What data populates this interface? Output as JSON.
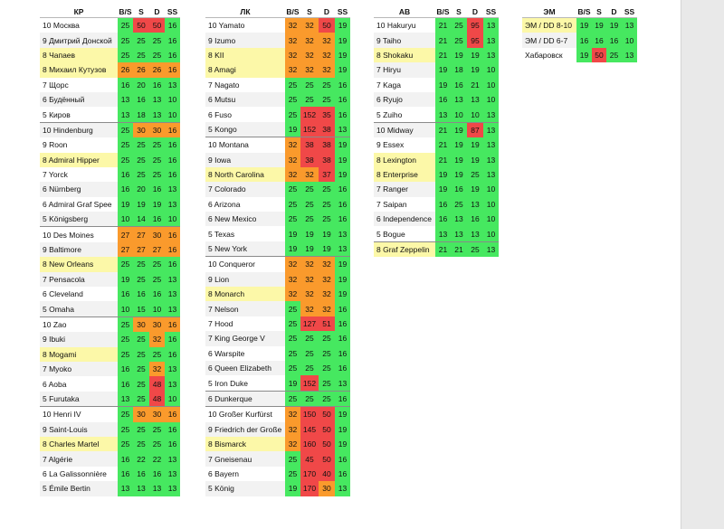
{
  "colors": {
    "green": "#46e860",
    "orange": "#fa9a2c",
    "red": "#f04848",
    "highlight": "#fcf8a8"
  },
  "tables": [
    {
      "id": "kr",
      "columns": [
        "КР",
        "B/S",
        "S",
        "D",
        "SS"
      ],
      "rows": [
        {
          "name": "10 Москва",
          "vals": [
            "25",
            "50",
            "50",
            "16"
          ],
          "c": "grrg",
          "hl": false
        },
        {
          "name": "9 Дмитрий Донской",
          "vals": [
            "25",
            "25",
            "25",
            "16"
          ],
          "c": "gggg",
          "hl": false
        },
        {
          "name": "8 Чапаев",
          "vals": [
            "25",
            "25",
            "25",
            "16"
          ],
          "c": "gggg",
          "hl": true
        },
        {
          "name": "8 Михаил Кутузов",
          "vals": [
            "26",
            "26",
            "26",
            "16"
          ],
          "c": "oooo",
          "hl": true
        },
        {
          "name": "7 Щорс",
          "vals": [
            "16",
            "20",
            "16",
            "13"
          ],
          "c": "gggg",
          "hl": false
        },
        {
          "name": "6 Будённый",
          "vals": [
            "13",
            "16",
            "13",
            "10"
          ],
          "c": "gggg",
          "hl": false
        },
        {
          "name": "5 Киров",
          "vals": [
            "13",
            "18",
            "13",
            "10"
          ],
          "c": "gggg",
          "hl": false
        },
        {
          "name": "10 Hindenburg",
          "vals": [
            "25",
            "30",
            "30",
            "16"
          ],
          "c": "gooo",
          "hl": false,
          "sep": true
        },
        {
          "name": "9 Roon",
          "vals": [
            "25",
            "25",
            "25",
            "16"
          ],
          "c": "gggg",
          "hl": false
        },
        {
          "name": "8 Admiral Hipper",
          "vals": [
            "25",
            "25",
            "25",
            "16"
          ],
          "c": "gggg",
          "hl": true
        },
        {
          "name": "7 Yorck",
          "vals": [
            "16",
            "25",
            "25",
            "16"
          ],
          "c": "gggg",
          "hl": false
        },
        {
          "name": "6 Nürnberg",
          "vals": [
            "16",
            "20",
            "16",
            "13"
          ],
          "c": "gggg",
          "hl": false
        },
        {
          "name": "6 Admiral Graf Spee",
          "vals": [
            "19",
            "19",
            "19",
            "13"
          ],
          "c": "gggg",
          "hl": false
        },
        {
          "name": "5 Königsberg",
          "vals": [
            "10",
            "14",
            "16",
            "10"
          ],
          "c": "gggg",
          "hl": false
        },
        {
          "name": "10 Des Moines",
          "vals": [
            "27",
            "27",
            "30",
            "16"
          ],
          "c": "oooo",
          "hl": false,
          "sep": true
        },
        {
          "name": "9 Baltimore",
          "vals": [
            "27",
            "27",
            "27",
            "16"
          ],
          "c": "oooo",
          "hl": false
        },
        {
          "name": "8 New Orleans",
          "vals": [
            "25",
            "25",
            "25",
            "16"
          ],
          "c": "gggg",
          "hl": true
        },
        {
          "name": "7 Pensacola",
          "vals": [
            "19",
            "25",
            "25",
            "13"
          ],
          "c": "gggg",
          "hl": false
        },
        {
          "name": "6 Cleveland",
          "vals": [
            "16",
            "16",
            "16",
            "13"
          ],
          "c": "gggg",
          "hl": false
        },
        {
          "name": "5 Omaha",
          "vals": [
            "10",
            "15",
            "10",
            "13"
          ],
          "c": "gggg",
          "hl": false
        },
        {
          "name": "10 Zao",
          "vals": [
            "25",
            "30",
            "30",
            "16"
          ],
          "c": "gooo",
          "hl": false,
          "sep": true
        },
        {
          "name": "9 Ibuki",
          "vals": [
            "25",
            "25",
            "32",
            "16"
          ],
          "c": "ggog",
          "hl": false
        },
        {
          "name": "8 Mogami",
          "vals": [
            "25",
            "25",
            "25",
            "16"
          ],
          "c": "gggg",
          "hl": true
        },
        {
          "name": "7 Myoko",
          "vals": [
            "16",
            "25",
            "32",
            "13"
          ],
          "c": "ggog",
          "hl": false
        },
        {
          "name": "6 Aoba",
          "vals": [
            "16",
            "25",
            "48",
            "13"
          ],
          "c": "ggrg",
          "hl": false
        },
        {
          "name": "5 Furutaka",
          "vals": [
            "13",
            "25",
            "48",
            "10"
          ],
          "c": "ggrg",
          "hl": false
        },
        {
          "name": "10 Henri IV",
          "vals": [
            "25",
            "30",
            "30",
            "16"
          ],
          "c": "gooo",
          "hl": false,
          "sep": true
        },
        {
          "name": "9 Saint-Louis",
          "vals": [
            "25",
            "25",
            "25",
            "16"
          ],
          "c": "gggg",
          "hl": false
        },
        {
          "name": "8 Charles Martel",
          "vals": [
            "25",
            "25",
            "25",
            "16"
          ],
          "c": "gggg",
          "hl": true
        },
        {
          "name": "7 Algérie",
          "vals": [
            "16",
            "22",
            "22",
            "13"
          ],
          "c": "gggg",
          "hl": false
        },
        {
          "name": "6 La Galissonnière",
          "vals": [
            "16",
            "16",
            "16",
            "13"
          ],
          "c": "gggg",
          "hl": false
        },
        {
          "name": "5 Émile Bertin",
          "vals": [
            "13",
            "13",
            "13",
            "13"
          ],
          "c": "gggg",
          "hl": false
        }
      ]
    },
    {
      "id": "lk",
      "columns": [
        "ЛК",
        "B/S",
        "S",
        "D",
        "SS"
      ],
      "rows": [
        {
          "name": "10 Yamato",
          "vals": [
            "32",
            "32",
            "50",
            "19"
          ],
          "c": "oorg",
          "hl": false
        },
        {
          "name": "9 Izumo",
          "vals": [
            "32",
            "32",
            "32",
            "19"
          ],
          "c": "ooog",
          "hl": false
        },
        {
          "name": "8 KII",
          "vals": [
            "32",
            "32",
            "32",
            "19"
          ],
          "c": "ooog",
          "hl": true
        },
        {
          "name": "8 Amagi",
          "vals": [
            "32",
            "32",
            "32",
            "19"
          ],
          "c": "ooog",
          "hl": true
        },
        {
          "name": "7 Nagato",
          "vals": [
            "25",
            "25",
            "25",
            "16"
          ],
          "c": "gggg",
          "hl": false
        },
        {
          "name": "6 Mutsu",
          "vals": [
            "25",
            "25",
            "25",
            "16"
          ],
          "c": "gggg",
          "hl": false
        },
        {
          "name": "6 Fuso",
          "vals": [
            "25",
            "152",
            "35",
            "16"
          ],
          "c": "grrg",
          "hl": false
        },
        {
          "name": "5 Kongo",
          "vals": [
            "19",
            "152",
            "38",
            "13"
          ],
          "c": "grrg",
          "hl": false
        },
        {
          "name": "10 Montana",
          "vals": [
            "32",
            "38",
            "38",
            "19"
          ],
          "c": "orrg",
          "hl": false,
          "sep": true
        },
        {
          "name": "9 Iowa",
          "vals": [
            "32",
            "38",
            "38",
            "19"
          ],
          "c": "orrg",
          "hl": false
        },
        {
          "name": "8 North Carolina",
          "vals": [
            "32",
            "32",
            "37",
            "19"
          ],
          "c": "oorg",
          "hl": true
        },
        {
          "name": "7 Colorado",
          "vals": [
            "25",
            "25",
            "25",
            "16"
          ],
          "c": "gggg",
          "hl": false
        },
        {
          "name": "6 Arizona",
          "vals": [
            "25",
            "25",
            "25",
            "16"
          ],
          "c": "gggg",
          "hl": false
        },
        {
          "name": "6 New Mexico",
          "vals": [
            "25",
            "25",
            "25",
            "16"
          ],
          "c": "gggg",
          "hl": false
        },
        {
          "name": "5 Texas",
          "vals": [
            "19",
            "19",
            "19",
            "13"
          ],
          "c": "gggg",
          "hl": false
        },
        {
          "name": "5 New York",
          "vals": [
            "19",
            "19",
            "19",
            "13"
          ],
          "c": "gggg",
          "hl": false
        },
        {
          "name": "10 Conqueror",
          "vals": [
            "32",
            "32",
            "32",
            "19"
          ],
          "c": "ooog",
          "hl": false,
          "sep": true
        },
        {
          "name": "9 Lion",
          "vals": [
            "32",
            "32",
            "32",
            "19"
          ],
          "c": "ooog",
          "hl": false
        },
        {
          "name": "8 Monarch",
          "vals": [
            "32",
            "32",
            "32",
            "19"
          ],
          "c": "ooog",
          "hl": true
        },
        {
          "name": "7 Nelson",
          "vals": [
            "25",
            "32",
            "32",
            "16"
          ],
          "c": "goog",
          "hl": false
        },
        {
          "name": "7 Hood",
          "vals": [
            "25",
            "127",
            "51",
            "16"
          ],
          "c": "grrg",
          "hl": false
        },
        {
          "name": "7 King George V",
          "vals": [
            "25",
            "25",
            "25",
            "16"
          ],
          "c": "gggg",
          "hl": false
        },
        {
          "name": "6 Warspite",
          "vals": [
            "25",
            "25",
            "25",
            "16"
          ],
          "c": "gggg",
          "hl": false
        },
        {
          "name": "6 Queen Elizabeth",
          "vals": [
            "25",
            "25",
            "25",
            "16"
          ],
          "c": "gggg",
          "hl": false
        },
        {
          "name": "5 Iron Duke",
          "vals": [
            "19",
            "152",
            "25",
            "13"
          ],
          "c": "grgg",
          "hl": false
        },
        {
          "name": "6 Dunkerque",
          "vals": [
            "25",
            "25",
            "25",
            "16"
          ],
          "c": "gggg",
          "hl": false,
          "sep": true
        },
        {
          "name": "10 Großer Kurfürst",
          "vals": [
            "32",
            "150",
            "50",
            "19"
          ],
          "c": "orrg",
          "hl": false,
          "sep": true
        },
        {
          "name": "9 Friedrich der Große",
          "vals": [
            "32",
            "145",
            "50",
            "19"
          ],
          "c": "orrg",
          "hl": false
        },
        {
          "name": "8 Bismarck",
          "vals": [
            "32",
            "160",
            "50",
            "19"
          ],
          "c": "orrg",
          "hl": true
        },
        {
          "name": "7 Gneisenau",
          "vals": [
            "25",
            "45",
            "50",
            "16"
          ],
          "c": "grrg",
          "hl": false
        },
        {
          "name": "6 Bayern",
          "vals": [
            "25",
            "170",
            "40",
            "16"
          ],
          "c": "grrg",
          "hl": false
        },
        {
          "name": "5 König",
          "vals": [
            "19",
            "170",
            "30",
            "13"
          ],
          "c": "grog",
          "hl": false
        }
      ]
    },
    {
      "id": "av",
      "columns": [
        "АВ",
        "B/S",
        "S",
        "D",
        "SS"
      ],
      "rows": [
        {
          "name": "10 Hakuryu",
          "vals": [
            "21",
            "25",
            "95",
            "13"
          ],
          "c": "ggrg",
          "hl": false
        },
        {
          "name": "9 Taiho",
          "vals": [
            "21",
            "25",
            "95",
            "13"
          ],
          "c": "ggrg",
          "hl": false
        },
        {
          "name": "8 Shokaku",
          "vals": [
            "21",
            "19",
            "19",
            "13"
          ],
          "c": "gggg",
          "hl": true
        },
        {
          "name": "7 Hiryu",
          "vals": [
            "19",
            "18",
            "19",
            "10"
          ],
          "c": "gggg",
          "hl": false
        },
        {
          "name": "7 Kaga",
          "vals": [
            "19",
            "16",
            "21",
            "10"
          ],
          "c": "gggg",
          "hl": false
        },
        {
          "name": "6 Ryujo",
          "vals": [
            "16",
            "13",
            "13",
            "10"
          ],
          "c": "gggg",
          "hl": false
        },
        {
          "name": "5 Zuiho",
          "vals": [
            "13",
            "10",
            "10",
            "13"
          ],
          "c": "gggg",
          "hl": false
        },
        {
          "name": "10 Midway",
          "vals": [
            "21",
            "19",
            "87",
            "13"
          ],
          "c": "ggrg",
          "hl": false,
          "sep": true
        },
        {
          "name": "9 Essex",
          "vals": [
            "21",
            "19",
            "19",
            "13"
          ],
          "c": "gggg",
          "hl": false
        },
        {
          "name": "8 Lexington",
          "vals": [
            "21",
            "19",
            "19",
            "13"
          ],
          "c": "gggg",
          "hl": true
        },
        {
          "name": "8 Enterprise",
          "vals": [
            "19",
            "19",
            "25",
            "13"
          ],
          "c": "gggg",
          "hl": true
        },
        {
          "name": "7 Ranger",
          "vals": [
            "19",
            "16",
            "19",
            "10"
          ],
          "c": "gggg",
          "hl": false
        },
        {
          "name": "7 Saipan",
          "vals": [
            "16",
            "25",
            "13",
            "10"
          ],
          "c": "gggg",
          "hl": false
        },
        {
          "name": "6 Independence",
          "vals": [
            "16",
            "13",
            "16",
            "10"
          ],
          "c": "gggg",
          "hl": false
        },
        {
          "name": "5 Bogue",
          "vals": [
            "13",
            "13",
            "13",
            "10"
          ],
          "c": "gggg",
          "hl": false
        },
        {
          "name": "8 Graf Zeppelin",
          "vals": [
            "21",
            "21",
            "25",
            "13"
          ],
          "c": "gggg",
          "hl": true,
          "sep": true
        }
      ]
    },
    {
      "id": "em",
      "columns": [
        "ЭМ",
        "B/S",
        "S",
        "D",
        "SS"
      ],
      "rows": [
        {
          "name": "ЭМ / DD 8-10",
          "vals": [
            "19",
            "19",
            "19",
            "13"
          ],
          "c": "gggg",
          "hl": true
        },
        {
          "name": "ЭМ / DD 6-7",
          "vals": [
            "16",
            "16",
            "16",
            "10"
          ],
          "c": "gggg",
          "hl": false
        },
        {
          "name": "Хабаровск",
          "vals": [
            "19",
            "50",
            "25",
            "13"
          ],
          "c": "grgg",
          "hl": false
        }
      ]
    }
  ]
}
